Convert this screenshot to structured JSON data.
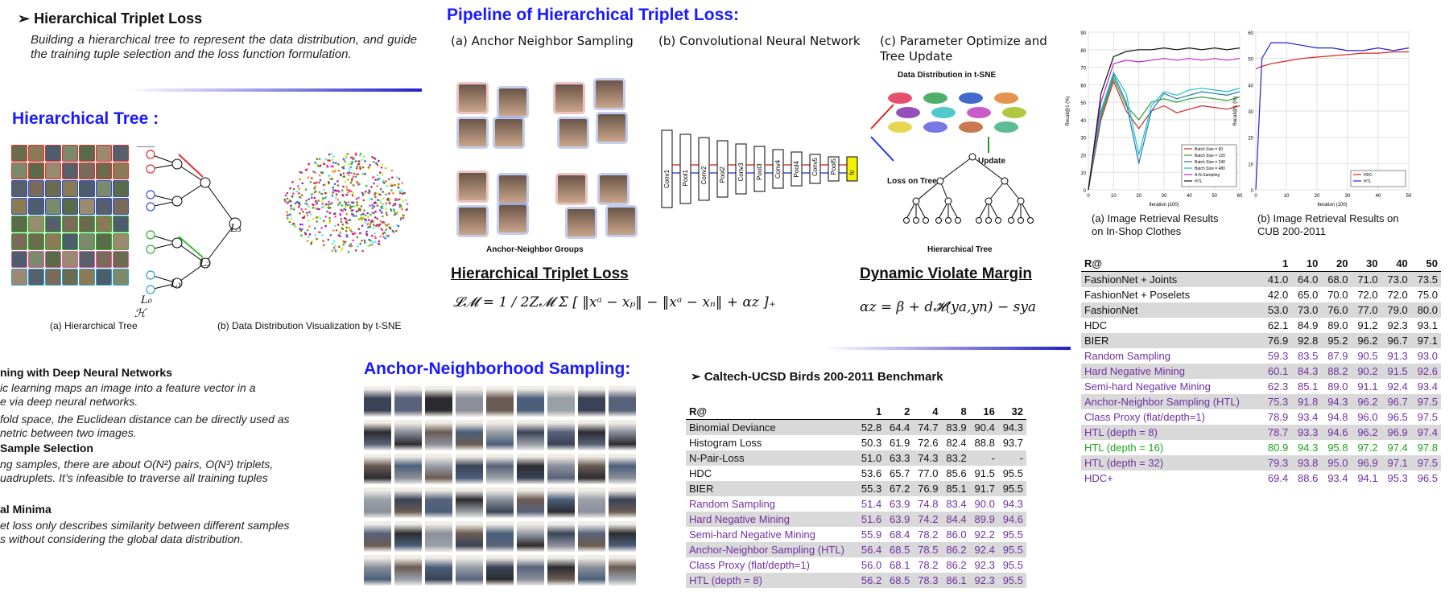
{
  "htl_section": {
    "title": "Hierarchical Triplet Loss",
    "desc": "Building a hierarchical tree to represent the data distribution, and guide the training tuple selection and the loss function formulation."
  },
  "tree_section": {
    "title": "Hierarchical Tree :",
    "caption_a": "(a) Hierarchical Tree",
    "caption_b": "(b) Data Distribution Visualization by t-SNE",
    "labels": {
      "l0": "L₀",
      "l1": "L₁",
      "l2": "L₂",
      "l3": "L₃",
      "h": "ℋ"
    }
  },
  "pipeline": {
    "title": "Pipeline of Hierarchical Triplet Loss:",
    "sub_a": "(a) Anchor Neighbor Sampling",
    "sub_b": "(b) Convolutional Neural Network",
    "sub_c": "(c) Parameter Optimize and Tree Update",
    "groups_label": "Anchor-Neighbor Groups",
    "tsne_label": "Data Distribution in t-SNE",
    "update_label": "Update",
    "loss_tree_label": "Loss on Tree",
    "tree_label": "Hierarchical Tree",
    "layers": [
      "Conv1",
      "Pool1",
      "Conv2",
      "Pool2",
      "Conv3",
      "Pool3",
      "Conv4",
      "Pool4",
      "Conv5",
      "Pool5",
      "fc"
    ],
    "loss_heading": "Hierarchical Triplet Loss",
    "margin_heading": "Dynamic Violate Margin",
    "loss_formula_lhs": "ℒ",
    "loss_formula": "𝓛𝓜 = 1 / 2Z𝓜  Σ  [ ‖xᵃ − xₚ‖ − ‖xᵃ − xₙ‖ + αz ]₊",
    "margin_formula": "αz = β + d𝓗(ya,yn) − sya"
  },
  "left_bottom": {
    "h1": "ning with Deep Neural Networks",
    "t1a": "ic learning maps an image into a feature vector in a",
    "t1b": "e via deep neural networks.",
    "t1c": "fold space, the Euclidean distance can be directly used as",
    "t1d": "netric between two images.",
    "h2": "Sample Selection",
    "t2a": "ng samples, there are about O(N²) pairs, O(N³) triplets,",
    "t2b": "uadruplets. It’s infeasible to traverse all training tuples",
    "h3": "al Minima",
    "t3a": "et loss only describes similarity between different samples",
    "t3b": "s without considering the global data distribution."
  },
  "ans": {
    "title": "Anchor-Neighborhood Sampling:"
  },
  "cub": {
    "title": "Caltech-UCSD Birds 200-2011 Benchmark",
    "header": [
      "R@",
      "1",
      "2",
      "4",
      "8",
      "16",
      "32"
    ],
    "rows": [
      {
        "c": "grey",
        "v": [
          "Binomial Deviance",
          "52.8",
          "64.4",
          "74.7",
          "83.9",
          "90.4",
          "94.3"
        ]
      },
      {
        "c": "",
        "v": [
          "Histogram Loss",
          "50.3",
          "61.9",
          "72.6",
          "82.4",
          "88.8",
          "93.7"
        ]
      },
      {
        "c": "grey",
        "v": [
          "N-Pair-Loss",
          "51.0",
          "63.3",
          "74.3",
          "83.2",
          "-",
          "-"
        ]
      },
      {
        "c": "",
        "v": [
          "HDC",
          "53.6",
          "65.7",
          "77.0",
          "85.6",
          "91.5",
          "95.5"
        ]
      },
      {
        "c": "grey",
        "v": [
          "BIER",
          "55.3",
          "67.2",
          "76.9",
          "85.1",
          "91.7",
          "95.5"
        ]
      },
      {
        "c": "m",
        "v": [
          "Random Sampling",
          "51.4",
          "63.9",
          "74.8",
          "83.4",
          "90.0",
          "94.3"
        ]
      },
      {
        "c": "m grey",
        "v": [
          "Hard Negative Mining",
          "51.6",
          "63.9",
          "74.2",
          "84.4",
          "89.9",
          "94.6"
        ]
      },
      {
        "c": "m",
        "v": [
          "Semi-hard Negative Mining",
          "55.9",
          "68.4",
          "78.2",
          "86.0",
          "92.2",
          "95.5"
        ]
      },
      {
        "c": "m grey",
        "v": [
          "Anchor-Neighbor Sampling (HTL)",
          "56.4",
          "68.5",
          "78.5",
          "86.2",
          "92.4",
          "95.5"
        ]
      },
      {
        "c": "m",
        "v": [
          "Class Proxy (flat/depth=1)",
          "56.0",
          "68.1",
          "78.2",
          "86.2",
          "92.3",
          "95.5"
        ]
      },
      {
        "c": "m grey",
        "v": [
          "HTL (depth = 8)",
          "56.2",
          "68.5",
          "78.3",
          "86.1",
          "92.3",
          "95.5"
        ]
      }
    ]
  },
  "inshop": {
    "header": [
      "R@",
      "1",
      "10",
      "20",
      "30",
      "40",
      "50"
    ],
    "rows": [
      {
        "c": "grey",
        "v": [
          "FashionNet + Joints",
          "41.0",
          "64.0",
          "68.0",
          "71.0",
          "73.0",
          "73.5"
        ]
      },
      {
        "c": "",
        "v": [
          "FashionNet + Poselets",
          "42.0",
          "65.0",
          "70.0",
          "72.0",
          "72.0",
          "75.0"
        ]
      },
      {
        "c": "grey",
        "v": [
          "FashionNet",
          "53.0",
          "73.0",
          "76.0",
          "77.0",
          "79.0",
          "80.0"
        ]
      },
      {
        "c": "",
        "v": [
          "HDC",
          "62.1",
          "84.9",
          "89.0",
          "91.2",
          "92.3",
          "93.1"
        ]
      },
      {
        "c": "grey",
        "v": [
          "BIER",
          "76.9",
          "92.8",
          "95.2",
          "96.2",
          "96.7",
          "97.1"
        ]
      },
      {
        "c": "m",
        "v": [
          "Random Sampling",
          "59.3",
          "83.5",
          "87.9",
          "90.5",
          "91.3",
          "93.0"
        ]
      },
      {
        "c": "m grey",
        "v": [
          "Hard Negative Mining",
          "60.1",
          "84.3",
          "88.2",
          "90.2",
          "91.5",
          "92.6"
        ]
      },
      {
        "c": "m",
        "v": [
          "Semi-hard Negative Mining",
          "62.3",
          "85.1",
          "89.0",
          "91.1",
          "92.4",
          "93.4"
        ]
      },
      {
        "c": "m grey",
        "v": [
          "Anchor-Neighbor Sampling (HTL)",
          "75.3",
          "91.8",
          "94.3",
          "96.2",
          "96.7",
          "97.5"
        ]
      },
      {
        "c": "m",
        "v": [
          "Class Proxy (flat/depth=1)",
          "78.9",
          "93.4",
          "94.8",
          "96.0",
          "96.5",
          "97.5"
        ]
      },
      {
        "c": "m grey",
        "v": [
          "HTL (depth = 8)",
          "78.7",
          "93.3",
          "94.6",
          "96.2",
          "96.9",
          "97.4"
        ]
      },
      {
        "c": "g",
        "v": [
          "HTL (depth = 16)",
          "80.9",
          "94.3",
          "95.8",
          "97.2",
          "97.4",
          "97.8"
        ]
      },
      {
        "c": "m grey",
        "v": [
          "HTL (depth = 32)",
          "79.3",
          "93.8",
          "95.0",
          "96.9",
          "97.1",
          "97.5"
        ]
      },
      {
        "c": "m",
        "v": [
          "HDC+",
          "69.4",
          "88.6",
          "93.4",
          "94.1",
          "95.3",
          "96.5"
        ]
      }
    ]
  },
  "chart_data": [
    {
      "type": "line",
      "title": "",
      "xlabel": "Iteration (100)",
      "ylabel": "Recall@1 (%)",
      "xlim": [
        0,
        60
      ],
      "ylim": [
        0,
        90
      ],
      "xticks": [
        "0",
        "10",
        "20",
        "30",
        "40",
        "50",
        "60"
      ],
      "yticks": [
        "0",
        "10",
        "20",
        "30",
        "40",
        "50",
        "60",
        "70",
        "80",
        "90"
      ],
      "caption_a": "(a) Image Retrieval Results",
      "caption_b": "on In-Shop Clothes",
      "legend_position": "lower-right",
      "x": [
        0,
        5,
        10,
        15,
        20,
        25,
        30,
        35,
        40,
        45,
        50,
        55,
        60
      ],
      "series": [
        {
          "name": "Batch Size = 60",
          "color": "#d62728",
          "values": [
            0,
            40,
            62,
            45,
            35,
            45,
            48,
            44,
            46,
            48,
            47,
            46,
            48
          ]
        },
        {
          "name": "Batch Size = 120",
          "color": "#2ca02c",
          "values": [
            0,
            42,
            64,
            48,
            40,
            50,
            52,
            50,
            52,
            53,
            52,
            51,
            53
          ]
        },
        {
          "name": "Batch Size = 240",
          "color": "#1f77b4",
          "values": [
            0,
            44,
            66,
            50,
            15,
            45,
            55,
            52,
            54,
            56,
            55,
            54,
            56
          ]
        },
        {
          "name": "Batch Size = 480",
          "color": "#17becf",
          "values": [
            0,
            45,
            67,
            55,
            20,
            48,
            56,
            54,
            57,
            58,
            57,
            56,
            58
          ]
        },
        {
          "name": "A-N-Sampling",
          "color": "#c020c0",
          "values": [
            0,
            50,
            72,
            74,
            73,
            74,
            75,
            74,
            75,
            74,
            75,
            74,
            75
          ]
        },
        {
          "name": "HTL",
          "color": "#111111",
          "values": [
            0,
            55,
            76,
            79,
            80,
            80,
            81,
            80,
            81,
            80,
            81,
            80,
            81
          ]
        }
      ]
    },
    {
      "type": "line",
      "title": "",
      "xlabel": "Iteration (100)",
      "ylabel": "Recall@1 (%)",
      "xlim": [
        0,
        50
      ],
      "ylim": [
        0,
        60
      ],
      "xticks": [
        "0",
        "10",
        "20",
        "30",
        "40",
        "50"
      ],
      "yticks": [
        "0",
        "10",
        "20",
        "30",
        "40",
        "50",
        "60"
      ],
      "caption_a": "(b) Image Retrieval Results on",
      "caption_b": "CUB 200-2011",
      "legend_position": "lower-right",
      "x": [
        0,
        2,
        5,
        10,
        15,
        20,
        25,
        30,
        35,
        40,
        45,
        50
      ],
      "series": [
        {
          "name": "HDC",
          "color": "#e02020",
          "values": [
            46,
            47,
            48,
            49,
            50,
            50.5,
            51,
            51.5,
            52,
            52,
            52.5,
            52.5
          ]
        },
        {
          "name": "HTL",
          "color": "#2020e0",
          "values": [
            0,
            50,
            56,
            56,
            55,
            54,
            54,
            53,
            53,
            54,
            53,
            54
          ]
        }
      ]
    }
  ]
}
